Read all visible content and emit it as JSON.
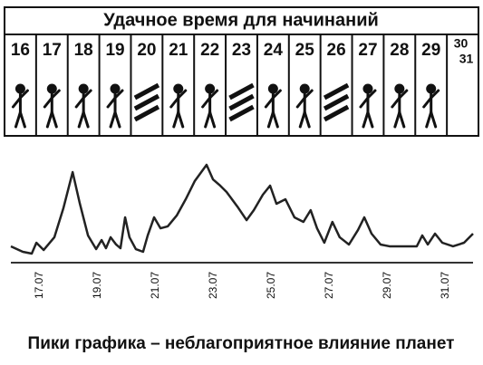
{
  "calendar": {
    "title": "Удачное время для начинаний",
    "days": [
      "16",
      "17",
      "18",
      "19",
      "20",
      "21",
      "22",
      "23",
      "24",
      "25",
      "26",
      "27",
      "28",
      "29"
    ],
    "last_days": [
      "30",
      "31"
    ]
  },
  "chart_data": {
    "type": "line",
    "caption": "Пики графика – неблагоприятное влияние планет",
    "x": [
      16.0,
      16.41,
      16.72,
      16.88,
      17.13,
      17.5,
      17.81,
      18.13,
      18.38,
      18.66,
      18.94,
      19.13,
      19.28,
      19.44,
      19.63,
      19.78,
      19.94,
      20.09,
      20.31,
      20.56,
      20.72,
      20.94,
      21.16,
      21.41,
      21.72,
      22.03,
      22.34,
      22.75,
      22.97,
      23.22,
      23.44,
      23.81,
      24.13,
      24.38,
      24.69,
      24.94,
      25.16,
      25.47,
      25.78,
      26.09,
      26.34,
      26.56,
      26.81,
      27.09,
      27.34,
      27.66,
      27.97,
      28.19,
      28.44,
      28.75,
      29.06,
      30.0,
      30.19,
      30.38,
      30.63,
      30.88,
      31.25,
      31.63,
      31.94
    ],
    "series": [
      {
        "color": "#222222",
        "values": [
          16.4,
          10.9,
          9.1,
          20,
          12.7,
          25.5,
          54.5,
          90.9,
          59.1,
          27.3,
          13.6,
          22.7,
          14.5,
          25.5,
          18.2,
          14.5,
          45.5,
          25.5,
          13.6,
          10.9,
          27.3,
          45.5,
          34.5,
          36.4,
          47.3,
          63.6,
          81.8,
          98.2,
          83.6,
          77.3,
          70.9,
          56.4,
          42.7,
          52.7,
          68.2,
          77.3,
          59.1,
          63.6,
          45.5,
          40.9,
          52.7,
          34.5,
          20,
          40.9,
          25.5,
          18.2,
          32.7,
          45.5,
          29.1,
          18.2,
          16.4,
          16.4,
          27.3,
          18.2,
          29.1,
          20,
          16.4,
          20,
          29.1
        ]
      }
    ],
    "xlim": [
      16,
      31.94
    ],
    "ylim": [
      0,
      100
    ],
    "xticks": [
      {
        "value": 17,
        "label": "17.07"
      },
      {
        "value": 19,
        "label": "19.07"
      },
      {
        "value": 21,
        "label": "21.07"
      },
      {
        "value": 23,
        "label": "23.07"
      },
      {
        "value": 25,
        "label": "25.07"
      },
      {
        "value": 27,
        "label": "27.07"
      },
      {
        "value": 29,
        "label": "29.07"
      },
      {
        "value": 31,
        "label": "31.07"
      }
    ]
  }
}
